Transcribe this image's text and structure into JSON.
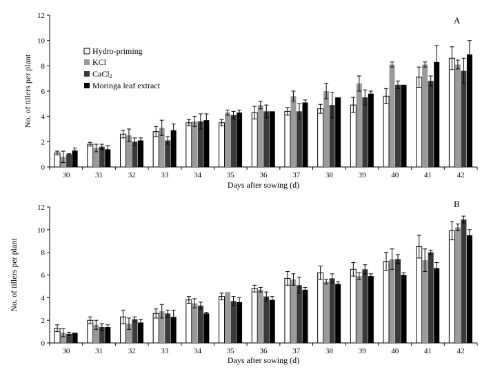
{
  "colors": {
    "hydro": "#ffffff",
    "kcl": "#9a9a9a",
    "cacl": "#3a3a3a",
    "moringa": "#000000",
    "outline": "#000000"
  },
  "legend": {
    "hydro": "Hydro-priming",
    "kcl": "KCl",
    "cacl": "CaCl",
    "cacl_sub": "2",
    "moringa": "Moringa leaf extract"
  },
  "chart_data": [
    {
      "type": "bar",
      "panel_label": "A",
      "xlabel": "Days after sowing (d)",
      "ylabel": "No. of tillers per plant",
      "ylim": [
        0,
        12
      ],
      "yticks": [
        "0",
        "2",
        "4",
        "6",
        "8",
        "10",
        "12"
      ],
      "categories": [
        "30",
        "31",
        "32",
        "33",
        "34",
        "35",
        "36",
        "37",
        "38",
        "39",
        "40",
        "41",
        "42"
      ],
      "series": [
        {
          "name": "Hydro-priming",
          "values": [
            1.1,
            1.8,
            2.6,
            2.8,
            3.5,
            3.5,
            4.3,
            4.4,
            4.6,
            4.9,
            5.6,
            7.1,
            8.6
          ],
          "errors": [
            0.15,
            0.15,
            0.3,
            0.4,
            0.25,
            0.25,
            0.5,
            0.3,
            0.35,
            0.6,
            0.6,
            0.8,
            0.9
          ]
        },
        {
          "name": "KCl",
          "values": [
            0.8,
            1.5,
            2.5,
            3.1,
            3.6,
            4.3,
            4.9,
            5.6,
            6.0,
            6.6,
            8.1,
            8.1,
            8.1
          ],
          "errors": [
            0.45,
            0.3,
            0.5,
            0.6,
            0.4,
            0.2,
            0.3,
            0.4,
            0.6,
            0.6,
            0.2,
            0.2,
            0.35
          ]
        },
        {
          "name": "CaCl2",
          "values": [
            1.0,
            1.6,
            2.0,
            2.1,
            3.6,
            4.1,
            4.4,
            4.4,
            4.9,
            5.5,
            6.5,
            6.8,
            7.6
          ],
          "errors": [
            0.05,
            0.2,
            0.3,
            0.3,
            0.6,
            0.3,
            0.5,
            0.6,
            1.0,
            0.6,
            0.3,
            0.4,
            1.0
          ]
        },
        {
          "name": "Moringa leaf extract",
          "values": [
            1.3,
            1.4,
            2.1,
            2.9,
            3.7,
            4.3,
            4.4,
            5.1,
            5.5,
            5.8,
            6.5,
            8.3,
            8.9
          ],
          "errors": [
            0.2,
            0.3,
            0.2,
            0.5,
            0.5,
            0.2,
            0.0,
            0.2,
            0.0,
            0.2,
            0.0,
            1.3,
            1.1
          ]
        }
      ]
    },
    {
      "type": "bar",
      "panel_label": "B",
      "xlabel": "Days after sowing (d)",
      "ylabel": "No. of tillers per plant",
      "ylim": [
        0,
        12
      ],
      "yticks": [
        "0",
        "2",
        "4",
        "6",
        "8",
        "10",
        "12"
      ],
      "categories": [
        "30",
        "31",
        "32",
        "33",
        "34",
        "35",
        "36",
        "37",
        "38",
        "39",
        "40",
        "41",
        "42"
      ],
      "series": [
        {
          "name": "Hydro-priming",
          "values": [
            1.3,
            2.0,
            2.3,
            2.6,
            3.8,
            4.1,
            4.8,
            5.7,
            6.2,
            6.5,
            7.2,
            8.5,
            9.9
          ],
          "errors": [
            0.3,
            0.3,
            0.6,
            0.4,
            0.3,
            0.3,
            0.3,
            0.6,
            0.6,
            0.6,
            0.8,
            1.0,
            0.8
          ]
        },
        {
          "name": "KCl",
          "values": [
            0.9,
            1.6,
            1.7,
            2.8,
            3.5,
            4.5,
            4.7,
            5.6,
            5.4,
            5.9,
            7.4,
            7.3,
            10.2
          ],
          "errors": [
            0.35,
            0.4,
            0.5,
            0.6,
            0.4,
            0.0,
            0.2,
            0.5,
            0.2,
            0.3,
            0.9,
            1.0,
            0.3
          ]
        },
        {
          "name": "CaCl2",
          "values": [
            0.8,
            1.4,
            2.1,
            2.6,
            3.3,
            3.7,
            4.1,
            5.1,
            5.7,
            6.5,
            7.4,
            8.0,
            10.9
          ],
          "errors": [
            0.15,
            0.3,
            0.2,
            0.3,
            0.3,
            0.4,
            0.4,
            0.7,
            0.4,
            0.4,
            0.4,
            0.2,
            0.3
          ]
        },
        {
          "name": "Moringa leaf extract",
          "values": [
            0.9,
            1.4,
            1.8,
            2.3,
            2.6,
            3.6,
            3.8,
            4.7,
            5.2,
            5.9,
            6.0,
            6.6,
            9.5
          ],
          "errors": [
            0.0,
            0.2,
            0.3,
            0.6,
            0.1,
            0.4,
            0.3,
            0.2,
            0.2,
            0.2,
            0.2,
            0.5,
            0.5
          ]
        }
      ]
    }
  ]
}
